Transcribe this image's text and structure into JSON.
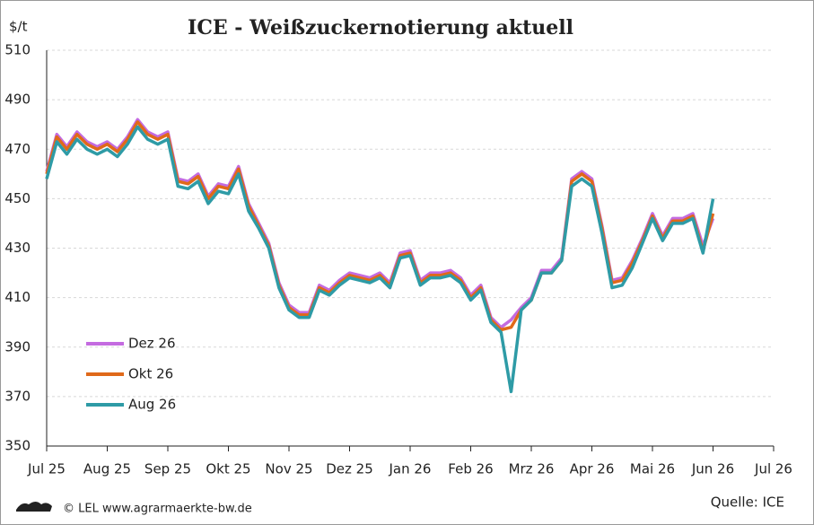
{
  "chart_data": {
    "type": "line",
    "title": "ICE - Weißzuckernotierung aktuell",
    "y_label": "$/t",
    "source": "Quelle: ICE",
    "credit": "© LEL www.agrarmaerkte-bw.de",
    "categories": [
      "Jul 25",
      null,
      null,
      null,
      null,
      null,
      "Aug 25",
      null,
      null,
      null,
      null,
      null,
      "Sep 25",
      null,
      null,
      null,
      null,
      null,
      "Okt 25",
      null,
      null,
      null,
      null,
      null,
      "Nov 25",
      null,
      null,
      null,
      null,
      null,
      "Dez 25",
      null,
      null,
      null,
      null,
      null,
      "Jan 26",
      null,
      null,
      null,
      null,
      null,
      "Feb 26",
      null,
      null,
      null,
      null,
      null,
      "Mrz 26",
      null,
      null,
      null,
      null,
      null,
      "Apr 26",
      null,
      null,
      null,
      null,
      null,
      "Mai 26",
      null,
      null,
      null,
      null,
      null,
      "Jun 26",
      null,
      null,
      null,
      null,
      null,
      "Jul 26"
    ],
    "series": [
      {
        "name": "Dez 26",
        "color": "#c46be0",
        "values": [
          461,
          476,
          471,
          477,
          473,
          471,
          473,
          470,
          475,
          482,
          477,
          475,
          477,
          458,
          457,
          460,
          451,
          456,
          455,
          463,
          448,
          440,
          432,
          416,
          407,
          404,
          404,
          415,
          413,
          417,
          420,
          419,
          418,
          420,
          416,
          428,
          429,
          417,
          420,
          420,
          421,
          418,
          411,
          415,
          402,
          398,
          401,
          406,
          410,
          421,
          421,
          426,
          458,
          461,
          458,
          439,
          417,
          418,
          425,
          434,
          444,
          435,
          442,
          442,
          444,
          431,
          442,
          null,
          null,
          null,
          null,
          null,
          null
        ]
      },
      {
        "name": "Okt 26",
        "color": "#e0691a",
        "values": [
          460,
          475,
          470,
          476,
          472,
          470,
          472,
          469,
          474,
          481,
          476,
          474,
          476,
          457,
          456,
          459,
          450,
          455,
          454,
          462,
          447,
          439,
          431,
          415,
          406,
          403,
          403,
          414,
          412,
          416,
          419,
          418,
          417,
          419,
          415,
          427,
          428,
          416,
          419,
          419,
          420,
          417,
          410,
          414,
          401,
          397,
          398,
          405,
          409,
          420,
          420,
          425,
          457,
          460,
          457,
          438,
          416,
          417,
          424,
          433,
          443,
          434,
          441,
          441,
          443,
          429,
          444,
          null,
          null,
          null,
          null,
          null,
          null
        ]
      },
      {
        "name": "Aug 26",
        "color": "#2e9ba6",
        "values": [
          458,
          473,
          468,
          474,
          470,
          468,
          470,
          467,
          472,
          479,
          474,
          472,
          474,
          455,
          454,
          457,
          448,
          453,
          452,
          460,
          445,
          438,
          430,
          414,
          405,
          402,
          402,
          413,
          411,
          415,
          418,
          417,
          416,
          418,
          414,
          426,
          427,
          415,
          418,
          418,
          419,
          416,
          409,
          413,
          400,
          396,
          372,
          405,
          409,
          420,
          420,
          425,
          455,
          458,
          455,
          436,
          414,
          415,
          422,
          432,
          442,
          433,
          440,
          440,
          442,
          428,
          450,
          null,
          null,
          null,
          null,
          null,
          null
        ]
      }
    ],
    "ylim": [
      350,
      510
    ],
    "yticks": [
      350,
      370,
      390,
      410,
      430,
      450,
      470,
      490,
      510
    ],
    "grid": true
  }
}
